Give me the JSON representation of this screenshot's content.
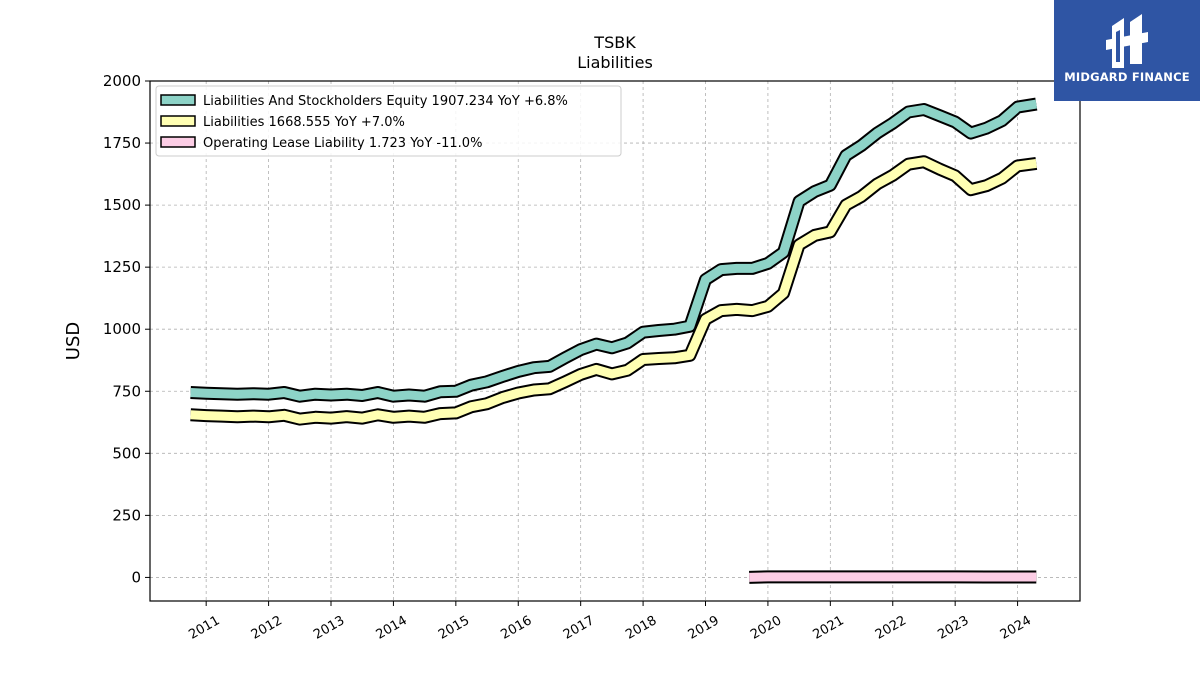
{
  "chart_data": {
    "type": "line",
    "title": "TSBK",
    "subtitle": "Liabilities",
    "ylabel": "USD",
    "xlabel": "",
    "xlim": [
      2010.1,
      2025.0
    ],
    "ylim": [
      -95,
      2000
    ],
    "yticks": [
      0,
      250,
      500,
      750,
      1000,
      1250,
      1500,
      1750,
      2000
    ],
    "xticks": [
      2011,
      2012,
      2013,
      2014,
      2015,
      2016,
      2017,
      2018,
      2019,
      2020,
      2021,
      2022,
      2023,
      2024
    ],
    "grid": true,
    "legend_position": "top-left",
    "series": [
      {
        "name": "Liabilities And Stockholders Equity",
        "legend_label": "Liabilities And Stockholders Equity  1907.234 YoY +6.8%",
        "color": "#8dd3c7",
        "x": [
          2010.75,
          2011.0,
          2011.25,
          2011.5,
          2011.75,
          2012.0,
          2012.25,
          2012.5,
          2012.75,
          2013.0,
          2013.25,
          2013.5,
          2013.75,
          2014.0,
          2014.25,
          2014.5,
          2014.75,
          2015.0,
          2015.25,
          2015.5,
          2015.75,
          2016.0,
          2016.25,
          2016.5,
          2016.75,
          2017.0,
          2017.25,
          2017.5,
          2017.75,
          2018.0,
          2018.25,
          2018.5,
          2018.75,
          2019.0,
          2019.25,
          2019.5,
          2019.75,
          2020.0,
          2020.25,
          2020.5,
          2020.75,
          2021.0,
          2021.25,
          2021.5,
          2021.75,
          2022.0,
          2022.25,
          2022.5,
          2022.75,
          2023.0,
          2023.25,
          2023.5,
          2023.75,
          2024.0,
          2024.3
        ],
        "values": [
          745,
          742,
          740,
          738,
          740,
          738,
          745,
          730,
          738,
          735,
          738,
          733,
          745,
          730,
          735,
          730,
          748,
          750,
          775,
          788,
          810,
          830,
          845,
          850,
          885,
          918,
          940,
          925,
          945,
          988,
          995,
          1000,
          1012,
          1200,
          1240,
          1245,
          1245,
          1265,
          1310,
          1515,
          1555,
          1580,
          1700,
          1740,
          1790,
          1830,
          1875,
          1885,
          1860,
          1835,
          1790,
          1810,
          1840,
          1895,
          1907
        ]
      },
      {
        "name": "Liabilities",
        "legend_label": "Liabilities  1668.555 YoY +7.0%",
        "color": "#ffffb3",
        "x": [
          2010.75,
          2011.0,
          2011.25,
          2011.5,
          2011.75,
          2012.0,
          2012.25,
          2012.5,
          2012.75,
          2013.0,
          2013.25,
          2013.5,
          2013.75,
          2014.0,
          2014.25,
          2014.5,
          2014.75,
          2015.0,
          2015.25,
          2015.5,
          2015.75,
          2016.0,
          2016.25,
          2016.5,
          2016.75,
          2017.0,
          2017.25,
          2017.5,
          2017.75,
          2018.0,
          2018.25,
          2018.5,
          2018.75,
          2019.0,
          2019.25,
          2019.5,
          2019.75,
          2020.0,
          2020.25,
          2020.5,
          2020.75,
          2021.0,
          2021.25,
          2021.5,
          2021.75,
          2022.0,
          2022.25,
          2022.5,
          2022.75,
          2023.0,
          2023.25,
          2023.5,
          2023.75,
          2024.0,
          2024.3
        ],
        "values": [
          655,
          652,
          650,
          647,
          650,
          647,
          653,
          638,
          645,
          642,
          648,
          642,
          655,
          645,
          650,
          645,
          660,
          663,
          688,
          700,
          725,
          743,
          755,
          760,
          788,
          818,
          838,
          820,
          835,
          878,
          882,
          885,
          895,
          1040,
          1075,
          1080,
          1075,
          1092,
          1145,
          1340,
          1378,
          1392,
          1500,
          1535,
          1585,
          1620,
          1665,
          1675,
          1645,
          1618,
          1562,
          1578,
          1608,
          1658,
          1668
        ]
      },
      {
        "name": "Operating Lease Liability",
        "legend_label": "Operating Lease Liability  1.723 YoY -11.0%",
        "color": "#fccde5",
        "x": [
          2019.7,
          2020.0,
          2020.5,
          2021.0,
          2021.5,
          2022.0,
          2022.5,
          2023.0,
          2023.5,
          2024.0,
          2024.3
        ],
        "values": [
          0,
          2,
          2,
          2,
          2,
          2,
          1.9,
          1.9,
          1.8,
          1.75,
          1.723
        ]
      }
    ]
  },
  "logo": {
    "text": "MIDGARD FINANCE",
    "bg_color": "#2f55a4"
  }
}
